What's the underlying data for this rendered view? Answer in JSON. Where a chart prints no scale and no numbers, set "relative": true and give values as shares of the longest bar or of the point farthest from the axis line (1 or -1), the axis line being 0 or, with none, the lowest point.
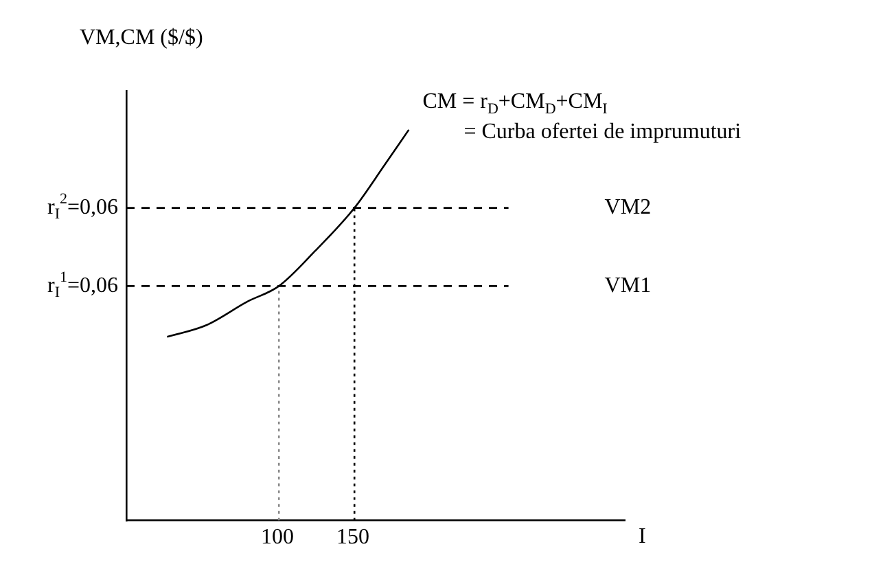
{
  "chart_data": {
    "type": "line",
    "relative": true,
    "ylabel": "VM,CM ($/$)",
    "xlabel": "I",
    "xlim": [
      0,
      330
    ],
    "xticks": [
      100,
      150
    ],
    "grid": false,
    "legend": false,
    "marker": "none",
    "tick_labels": "x",
    "series": [
      {
        "name": "CM = r$_{D}$+CM$_{D}$+CM$_{I}$",
        "color": "#000000",
        "line_style": "solid",
        "x": [
          27,
          53,
          80,
          101,
          125,
          151,
          171,
          187
        ],
        "values": [
          0.47,
          0.5,
          0.56,
          0.6,
          0.69,
          0.8,
          0.91,
          1.0
        ]
      },
      {
        "name": "VM2",
        "color": "#000000",
        "line_style": "dashed",
        "x": [
          0,
          253
        ],
        "values": [
          0.8,
          0.8
        ]
      },
      {
        "name": "VM1",
        "color": "#000000",
        "line_style": "dashed",
        "x": [
          0,
          253
        ],
        "values": [
          0.6,
          0.6
        ]
      },
      {
        "color": "#000000",
        "line_style": "dotted",
        "x": [
          151,
          151
        ],
        "values": [
          0,
          0.8
        ]
      },
      {
        "color": "#888888",
        "line_style": "dotted",
        "x": [
          101,
          101
        ],
        "values": [
          0,
          0.6
        ]
      }
    ],
    "annotations": [
      "= Curba ofertei de imprumuturi",
      "r$_{I}$$^{2}$=0,06",
      "r$_{I}$$^{1}$=0,06"
    ]
  }
}
